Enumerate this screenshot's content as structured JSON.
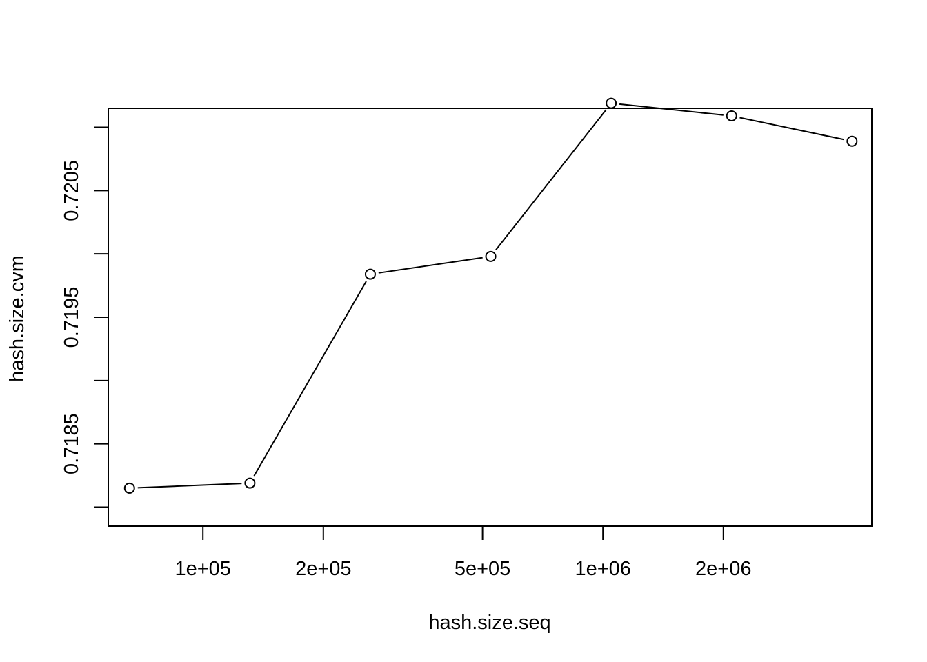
{
  "chart_data": {
    "type": "line",
    "title": "",
    "xlabel": "hash.size.seq",
    "ylabel": "hash.size.cvm",
    "x_scale": "log",
    "grid": false,
    "legend": "none",
    "xlim": [
      58000,
      4700000
    ],
    "ylim": [
      0.71785,
      0.72115
    ],
    "x_ticks": [
      {
        "value": 100000,
        "label": "1e+05"
      },
      {
        "value": 200000,
        "label": "2e+05"
      },
      {
        "value": 500000,
        "label": "5e+05"
      },
      {
        "value": 1000000,
        "label": "1e+06"
      },
      {
        "value": 2000000,
        "label": "2e+06"
      }
    ],
    "y_ticks": [
      {
        "value": 0.718,
        "label": ""
      },
      {
        "value": 0.7185,
        "label": "0.7185"
      },
      {
        "value": 0.719,
        "label": ""
      },
      {
        "value": 0.7195,
        "label": "0.7195"
      },
      {
        "value": 0.72,
        "label": ""
      },
      {
        "value": 0.7205,
        "label": "0.7205"
      },
      {
        "value": 0.721,
        "label": ""
      }
    ],
    "series": [
      {
        "x": [
          65536,
          131072,
          262144,
          524288,
          1048576,
          2097152,
          4194304
        ],
        "y": [
          0.71815,
          0.71819,
          0.71984,
          0.71998,
          0.72119,
          0.72109,
          0.72089
        ]
      }
    ],
    "colors": {
      "line": "#000000",
      "marker_fill": "#ffffff",
      "marker_stroke": "#000000"
    }
  }
}
